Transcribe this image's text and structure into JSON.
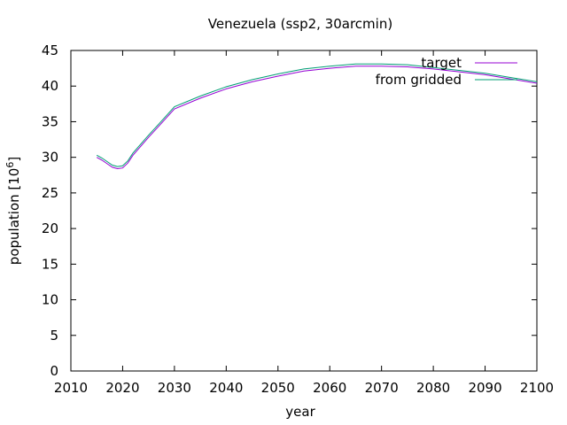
{
  "chart_data": {
    "type": "line",
    "title": "Venezuela (ssp2, 30arcmin)",
    "xlabel": "year",
    "ylabel_base": "population [10",
    "ylabel_exp": "6",
    "ylabel_close": "]",
    "xlim": [
      2010,
      2100
    ],
    "ylim": [
      0,
      45
    ],
    "xticks": [
      2010,
      2020,
      2030,
      2040,
      2050,
      2060,
      2070,
      2080,
      2090,
      2100
    ],
    "yticks": [
      0,
      5,
      10,
      15,
      20,
      25,
      30,
      35,
      40,
      45
    ],
    "grid": false,
    "legend_position": "top-right",
    "series": [
      {
        "name": "target",
        "color": "#9400d3",
        "x": [
          2015,
          2016,
          2017,
          2018,
          2019,
          2020,
          2021,
          2022,
          2025,
          2027,
          2030,
          2035,
          2040,
          2045,
          2050,
          2055,
          2060,
          2065,
          2070,
          2075,
          2080,
          2085,
          2090,
          2095,
          2100
        ],
        "y": [
          30.0,
          29.6,
          29.1,
          28.6,
          28.4,
          28.5,
          29.2,
          30.3,
          32.8,
          34.4,
          36.8,
          38.3,
          39.6,
          40.6,
          41.4,
          42.1,
          42.5,
          42.8,
          42.8,
          42.7,
          42.4,
          42.0,
          41.6,
          41.0,
          40.4
        ]
      },
      {
        "name": "from gridded",
        "color": "#009e73",
        "x": [
          2015,
          2016,
          2017,
          2018,
          2019,
          2020,
          2021,
          2022,
          2025,
          2027,
          2030,
          2035,
          2040,
          2045,
          2050,
          2055,
          2060,
          2065,
          2070,
          2075,
          2080,
          2085,
          2090,
          2095,
          2100
        ],
        "y": [
          30.3,
          29.9,
          29.4,
          28.9,
          28.7,
          28.8,
          29.5,
          30.6,
          33.1,
          34.7,
          37.1,
          38.6,
          39.9,
          40.9,
          41.7,
          42.4,
          42.8,
          43.1,
          43.1,
          43.0,
          42.6,
          42.2,
          41.8,
          41.2,
          40.6
        ]
      }
    ]
  }
}
